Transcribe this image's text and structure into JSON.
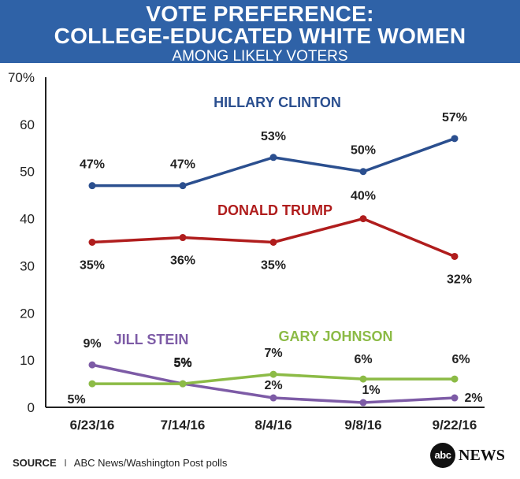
{
  "header": {
    "title_line1": "VOTE PREFERENCE:",
    "title_line2": "COLLEGE-EDUCATED WHITE WOMEN",
    "subtitle": "AMONG LIKELY VOTERS"
  },
  "chart_data": {
    "type": "line",
    "categories": [
      "6/23/16",
      "7/14/16",
      "8/4/16",
      "9/8/16",
      "9/22/16"
    ],
    "ylim": [
      0,
      70
    ],
    "yticks": [
      "0",
      "10",
      "20",
      "30",
      "40",
      "50",
      "60",
      "70%"
    ],
    "grid": false,
    "series": [
      {
        "name": "HILLARY CLINTON",
        "color": "#2b4f8f",
        "values": [
          47,
          47,
          53,
          50,
          57
        ],
        "labels": [
          "47%",
          "47%",
          "53%",
          "50%",
          "57%"
        ]
      },
      {
        "name": "DONALD TRUMP",
        "color": "#b01d1d",
        "values": [
          35,
          36,
          35,
          40,
          32
        ],
        "labels": [
          "35%",
          "36%",
          "35%",
          "40%",
          "32%"
        ]
      },
      {
        "name": "JILL STEIN",
        "color": "#7d5ba6",
        "values": [
          9,
          5,
          2,
          1,
          2
        ],
        "labels": [
          "9%",
          "5%",
          "2%",
          "1%",
          "2%"
        ]
      },
      {
        "name": "GARY JOHNSON",
        "color": "#8cbb46",
        "values": [
          5,
          5,
          7,
          6,
          6
        ],
        "labels": [
          "5%",
          "5%",
          "7%",
          "6%",
          "6%"
        ]
      }
    ]
  },
  "footer": {
    "source_label": "SOURCE",
    "separator": "I",
    "source_text": "ABC News/Washington Post polls"
  },
  "logo": {
    "disc": "abc",
    "word": "NEWS"
  }
}
